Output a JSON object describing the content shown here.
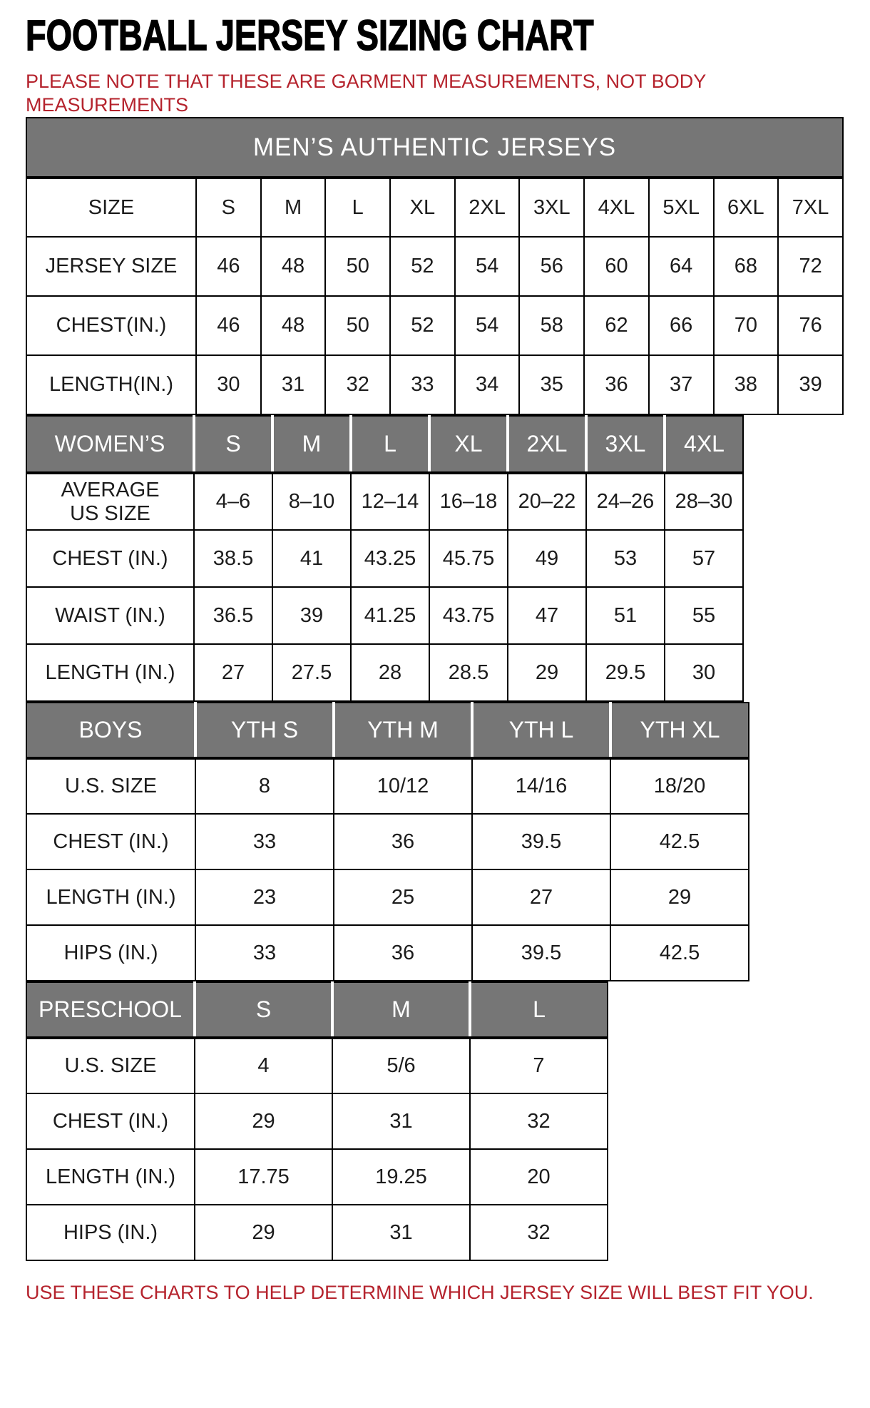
{
  "header": {
    "title": "FOOTBALL JERSEY SIZING CHART",
    "note_line1": "PLEASE NOTE THAT THESE ARE GARMENT MEASUREMENTS, NOT BODY",
    "note_line2": "MEASUREMENTS"
  },
  "footer": {
    "text": "USE THESE CHARTS TO HELP DETERMINE WHICH JERSEY SIZE WILL BEST FIT YOU."
  },
  "colors": {
    "accent_red": "#b5232d",
    "header_gray": "#767676",
    "header_text": "#ffffff",
    "border_black": "#000000",
    "body_text": "#1c1c1c",
    "background": "#ffffff"
  },
  "chart_data": [
    {
      "type": "table",
      "key": "mens",
      "title": "MEN’S AUTHENTIC JERSEYS",
      "header_style": "plain",
      "columns": [
        "SIZE",
        "S",
        "M",
        "L",
        "XL",
        "2XL",
        "3XL",
        "4XL",
        "5XL",
        "6XL",
        "7XL"
      ],
      "rows": [
        [
          "JERSEY SIZE",
          46,
          48,
          50,
          52,
          54,
          56,
          60,
          64,
          68,
          72
        ],
        [
          "CHEST(IN.)",
          46,
          48,
          50,
          52,
          54,
          58,
          62,
          66,
          70,
          76
        ],
        [
          "LENGTH(IN.)",
          30,
          31,
          32,
          33,
          34,
          35,
          36,
          37,
          38,
          39
        ]
      ]
    },
    {
      "type": "table",
      "key": "womens",
      "title": null,
      "header_style": "gray",
      "columns": [
        "WOMEN’S",
        "S",
        "M",
        "L",
        "XL",
        "2XL",
        "3XL",
        "4XL"
      ],
      "rows": [
        [
          "AVERAGE\nUS SIZE",
          "4–6",
          "8–10",
          "12–14",
          "16–18",
          "20–22",
          "24–26",
          "28–30"
        ],
        [
          "CHEST (IN.)",
          38.5,
          41,
          43.25,
          45.75,
          49,
          53,
          57
        ],
        [
          "WAIST (IN.)",
          36.5,
          39,
          41.25,
          43.75,
          47,
          51,
          55
        ],
        [
          "LENGTH (IN.)",
          27,
          27.5,
          28,
          28.5,
          29,
          29.5,
          30
        ]
      ]
    },
    {
      "type": "table",
      "key": "boys",
      "title": null,
      "header_style": "gray",
      "columns": [
        "BOYS",
        "YTH S",
        "YTH M",
        "YTH L",
        "YTH XL"
      ],
      "rows": [
        [
          "U.S. SIZE",
          "8",
          "10/12",
          "14/16",
          "18/20"
        ],
        [
          "CHEST (IN.)",
          33,
          36,
          39.5,
          42.5
        ],
        [
          "LENGTH (IN.)",
          23,
          25,
          27,
          29
        ],
        [
          "HIPS (IN.)",
          33,
          36,
          39.5,
          42.5
        ]
      ]
    },
    {
      "type": "table",
      "key": "preschool",
      "title": null,
      "header_style": "gray",
      "columns": [
        "PRESCHOOL",
        "S",
        "M",
        "L"
      ],
      "rows": [
        [
          "U.S. SIZE",
          "4",
          "5/6",
          "7"
        ],
        [
          "CHEST (IN.)",
          29,
          31,
          32
        ],
        [
          "LENGTH (IN.)",
          17.75,
          19.25,
          20
        ],
        [
          "HIPS (IN.)",
          29,
          31,
          32
        ]
      ]
    }
  ]
}
